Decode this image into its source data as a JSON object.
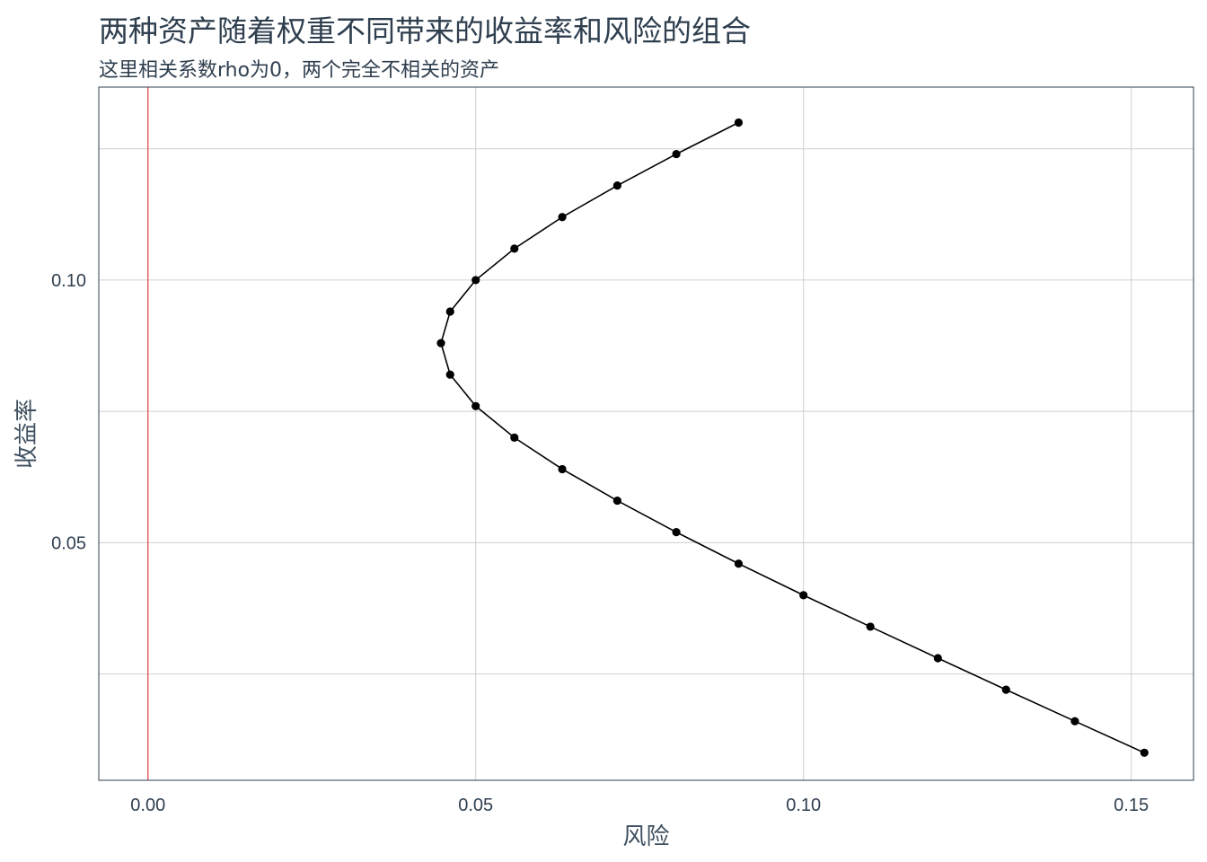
{
  "chart_data": {
    "type": "line",
    "title": "两种资产随着权重不同带来的收益率和风险的组合",
    "subtitle": "这里相关系数rho为0，两个完全不相关的资产",
    "xlabel": "风险",
    "ylabel": "收益率",
    "xlim": [
      -0.0075,
      0.1595
    ],
    "ylim": [
      0.00475,
      0.13675
    ],
    "x_ticks": [
      0.0,
      0.05,
      0.1,
      0.15
    ],
    "x_tick_labels": [
      "0.00",
      "0.05",
      "0.10",
      "0.15"
    ],
    "y_ticks": [
      0.05,
      0.1
    ],
    "y_tick_labels": [
      "0.05",
      "0.10"
    ],
    "y_minor_gridlines": [
      0.025,
      0.075,
      0.125
    ],
    "x_minor_gridlines": [],
    "grid": true,
    "reference_line": {
      "axis": "x",
      "value": 0,
      "color": "#e84a4a"
    },
    "series": [
      {
        "color": "#000000",
        "x": [
          0.152,
          0.1414,
          0.1309,
          0.1205,
          0.1102,
          0.1,
          0.0901,
          0.0806,
          0.0716,
          0.0632,
          0.0559,
          0.05,
          0.0461,
          0.0447,
          0.0461,
          0.05,
          0.0559,
          0.0632,
          0.0716,
          0.0806,
          0.0901
        ],
        "y": [
          0.01,
          0.016,
          0.022,
          0.028,
          0.034,
          0.04,
          0.046,
          0.052,
          0.058,
          0.064,
          0.07,
          0.076,
          0.082,
          0.088,
          0.094,
          0.1,
          0.106,
          0.112,
          0.118,
          0.124,
          0.13
        ]
      }
    ]
  }
}
